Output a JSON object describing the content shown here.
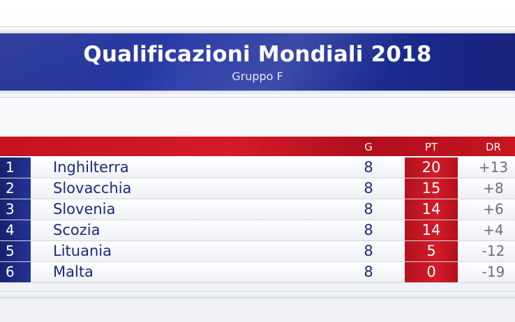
{
  "title": "Qualificazioni Mondiali 2018",
  "subtitle": "Gruppo F",
  "headers": {
    "g": "G",
    "pt": "PT",
    "dr": "DR"
  },
  "colors": {
    "blue": "#1d2a7a",
    "red": "#c3121f"
  },
  "rows": [
    {
      "pos": "1",
      "team": "Inghilterra",
      "g": "8",
      "pt": "20",
      "dr": "+13"
    },
    {
      "pos": "2",
      "team": "Slovacchia",
      "g": "8",
      "pt": "15",
      "dr": "+8"
    },
    {
      "pos": "3",
      "team": "Slovenia",
      "g": "8",
      "pt": "14",
      "dr": "+6"
    },
    {
      "pos": "4",
      "team": "Scozia",
      "g": "8",
      "pt": "14",
      "dr": "+4"
    },
    {
      "pos": "5",
      "team": "Lituania",
      "g": "8",
      "pt": "5",
      "dr": "-12"
    },
    {
      "pos": "6",
      "team": "Malta",
      "g": "8",
      "pt": "0",
      "dr": "-19"
    }
  ]
}
